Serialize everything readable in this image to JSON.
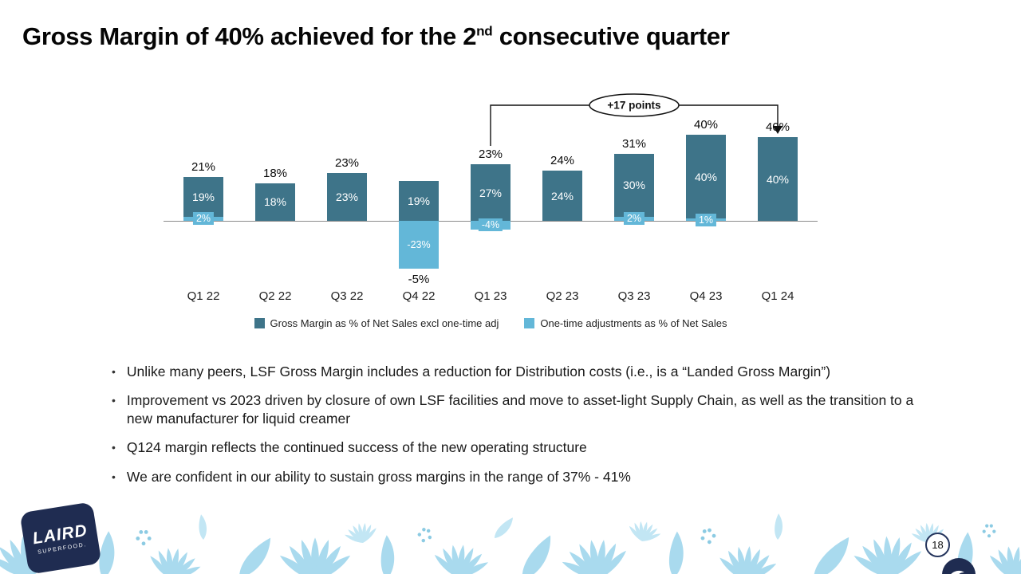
{
  "slide": {
    "title_part1": "Gross Margin of 40% achieved for the 2",
    "title_sup": "nd",
    "title_part2": " consecutive quarter",
    "page_number": "18"
  },
  "logo": {
    "line1": "LAIRD",
    "line2": "SUPERFOOD."
  },
  "chart_data": {
    "type": "bar",
    "stacked": true,
    "title": "",
    "xlabel": "",
    "ylabel": "",
    "ylim": [
      -30,
      45
    ],
    "grid": false,
    "legend_position": "bottom",
    "categories": [
      "Q1 22",
      "Q2 22",
      "Q3 22",
      "Q4 22",
      "Q1 23",
      "Q2 23",
      "Q3 23",
      "Q4 23",
      "Q1 24"
    ],
    "series": [
      {
        "name": "Gross Margin as % of Net Sales excl one-time adj",
        "color": "#3E7489",
        "values": [
          19,
          18,
          23,
          19,
          27,
          24,
          30,
          40,
          40
        ],
        "labels": [
          "19%",
          "18%",
          "23%",
          "19%",
          "27%",
          "24%",
          "30%",
          "40%",
          "40%"
        ]
      },
      {
        "name": "One-time adjustments as % of Net Sales",
        "color": "#63B7D8",
        "values": [
          2,
          0,
          0,
          -23,
          -4,
          0,
          2,
          1,
          0
        ],
        "labels": [
          "2%",
          "",
          "",
          "-23%",
          "-4%",
          "",
          "2%",
          "1%",
          ""
        ]
      }
    ],
    "total_labels": [
      "21%",
      "18%",
      "23%",
      "-5%",
      "23%",
      "24%",
      "31%",
      "40%",
      "40%"
    ],
    "total_label_positions": [
      "above",
      "above",
      "above",
      "below",
      "above",
      "above",
      "above",
      "above",
      "above"
    ],
    "annotation": {
      "text": "+17 points",
      "from_category": "Q1 23",
      "to_category": "Q1 24"
    }
  },
  "bullets": [
    "Unlike many peers, LSF Gross Margin includes a reduction for Distribution costs (i.e., is a “Landed Gross Margin”)",
    "Improvement vs 2023 driven by closure of own LSF facilities and move to asset-light Supply Chain, as well as the transition to a new manufacturer for liquid creamer",
    "Q124 margin reflects the continued success of the new operating structure",
    "We are confident in our ability to sustain gross margins in the range of 37% - 41%"
  ],
  "colors": {
    "gross_margin_bar": "#3E7489",
    "one_time_bar": "#63B7D8",
    "footer_leaf": "#A9DAEE",
    "logo_navy": "#1F2C51"
  }
}
